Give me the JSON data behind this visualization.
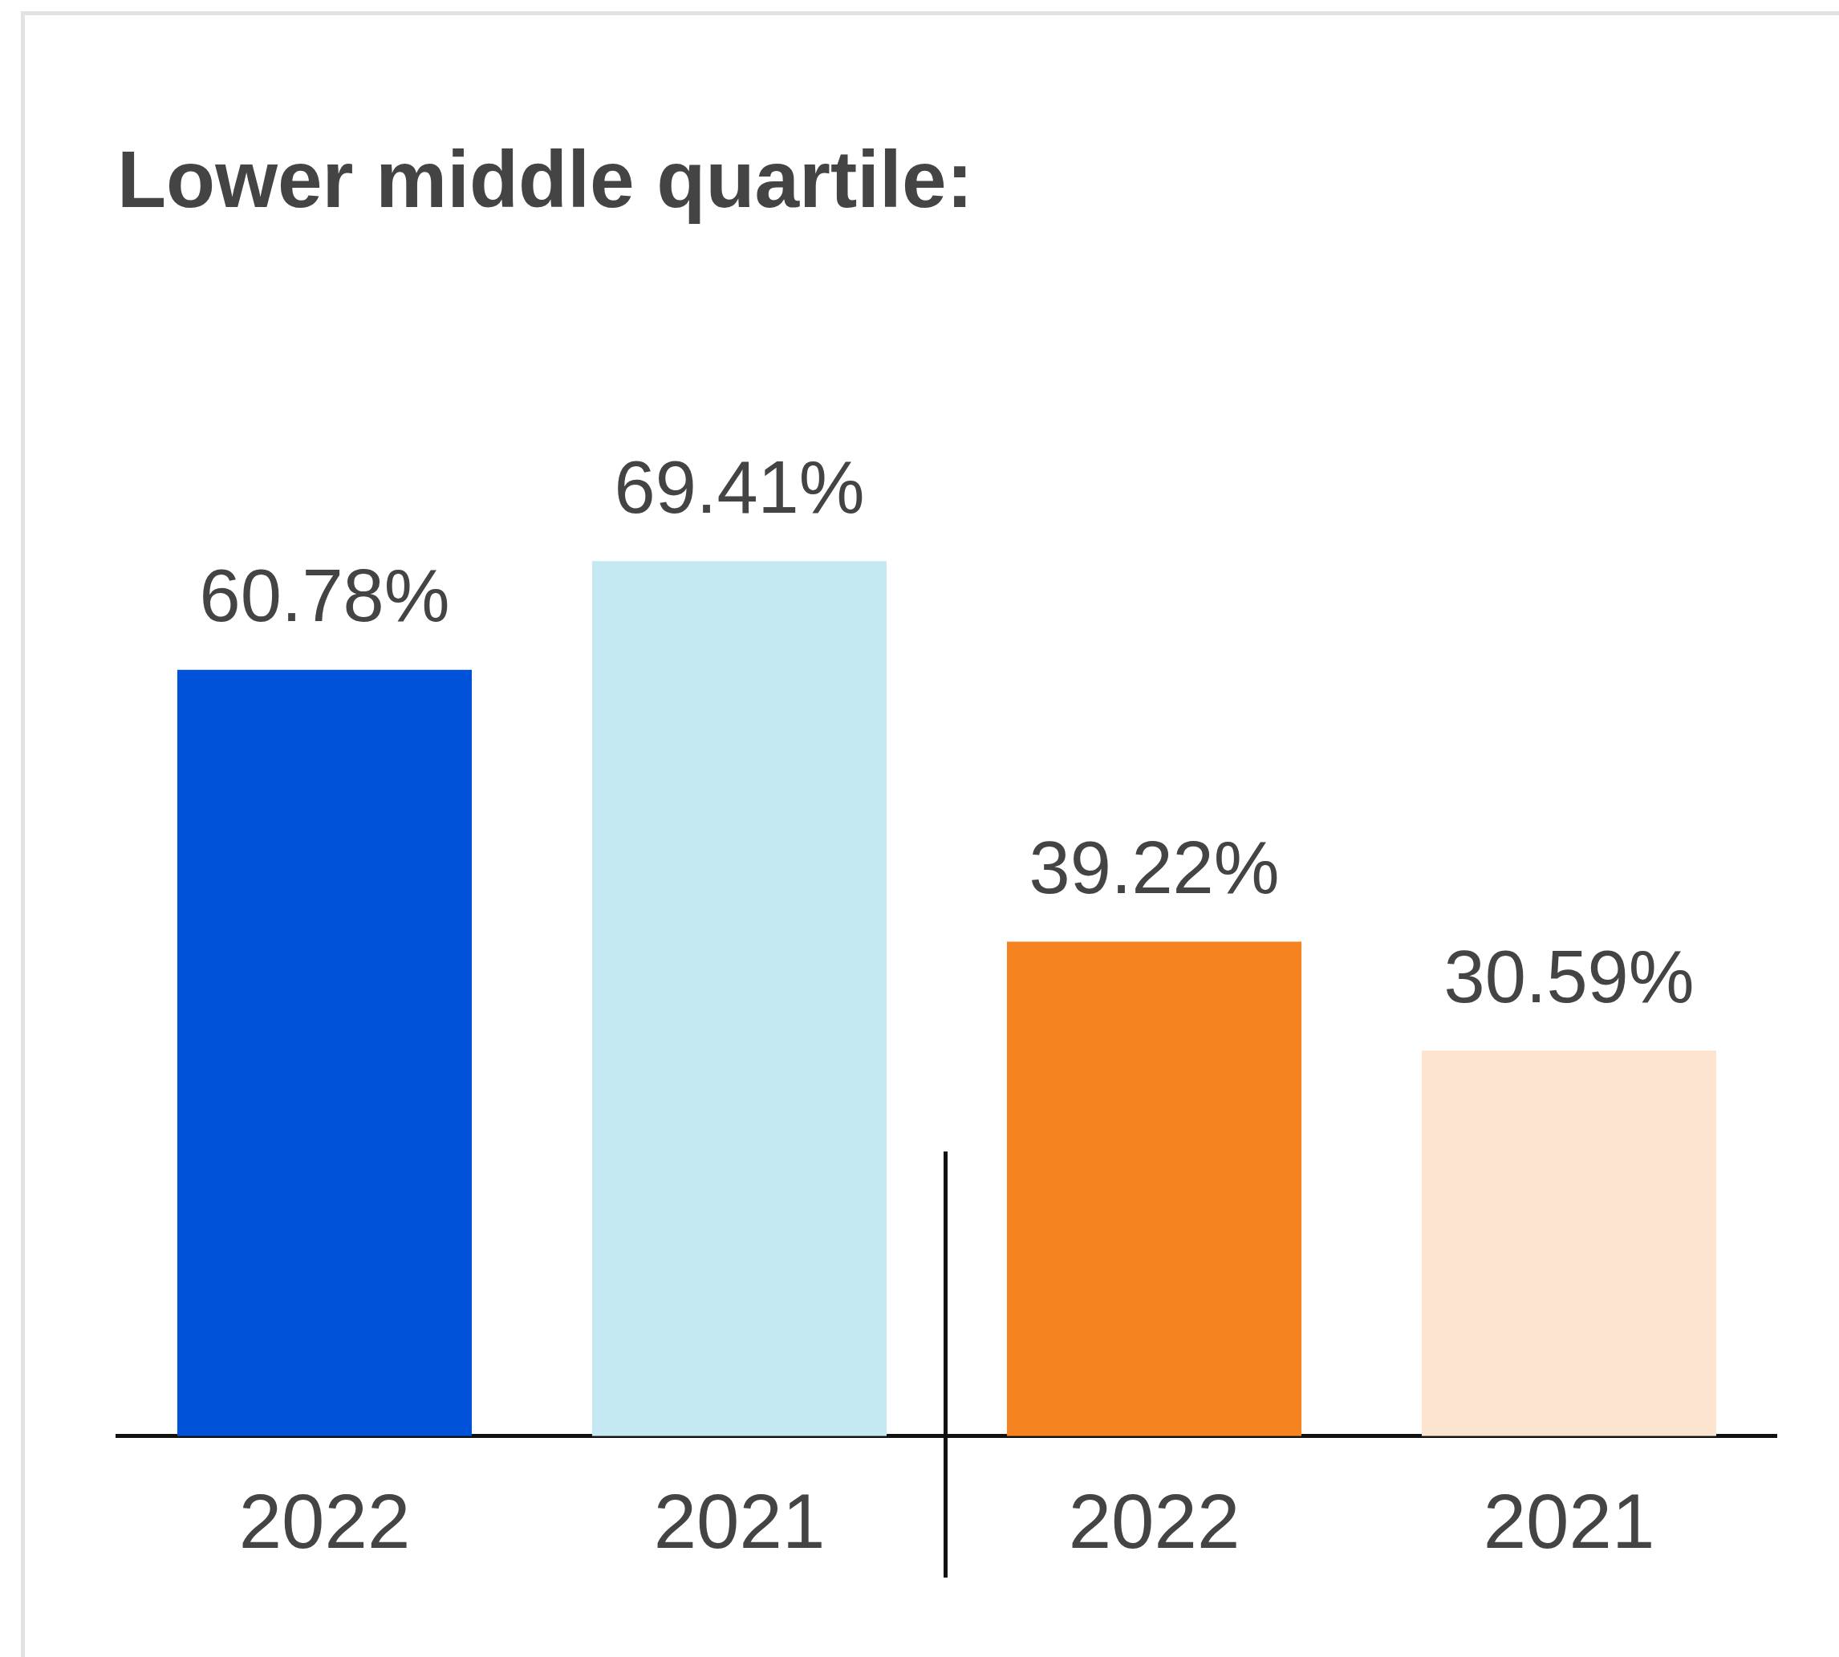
{
  "chart_data": {
    "type": "bar",
    "title": "Lower middle quartile:",
    "categories": [
      "2022",
      "2021",
      "2022",
      "2021"
    ],
    "values": [
      60.78,
      69.41,
      39.22,
      30.59
    ],
    "colors": [
      "#0052d9",
      "#c5e9f2",
      "#f48320",
      "#fce4d0"
    ],
    "value_labels": [
      "60.78%",
      "69.41%",
      "39.22%",
      "30.59%"
    ]
  }
}
